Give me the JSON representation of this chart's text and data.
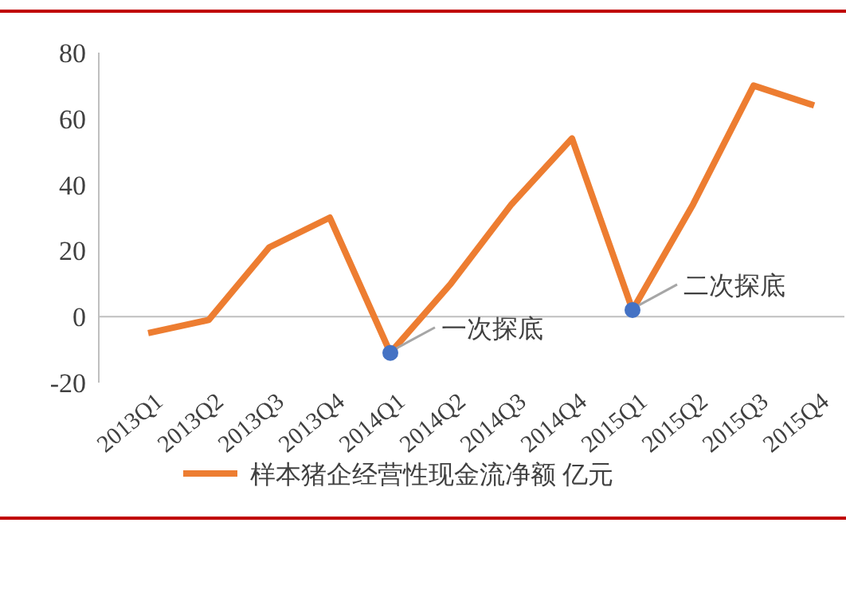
{
  "chart_data": {
    "type": "line",
    "categories": [
      "2013Q1",
      "2013Q2",
      "2013Q3",
      "2013Q4",
      "2014Q1",
      "2014Q2",
      "2014Q3",
      "2014Q4",
      "2015Q1",
      "2015Q2",
      "2015Q3",
      "2015Q4"
    ],
    "series": [
      {
        "name": "样本猪企经营性现金流净额 亿元",
        "color": "#ed7d31",
        "values": [
          -5,
          -1,
          21,
          30,
          -11,
          10,
          34,
          54,
          2,
          34,
          70,
          64
        ]
      },
      {
        "type": "scatter",
        "color": "#4472c4",
        "marker": "circle",
        "values": [
          null,
          null,
          null,
          null,
          -11,
          null,
          null,
          null,
          2,
          null,
          null,
          null
        ]
      }
    ],
    "ylim": [
      -20,
      80
    ],
    "yticks": [
      -20,
      0,
      20,
      40,
      60,
      80
    ],
    "legend": "bottom",
    "marker": "none",
    "annotations": [
      {
        "text": "一次探底",
        "x": "2014Q1",
        "y": -11
      },
      {
        "text": "二次探底",
        "x": "2015Q1",
        "y": 2
      }
    ]
  }
}
